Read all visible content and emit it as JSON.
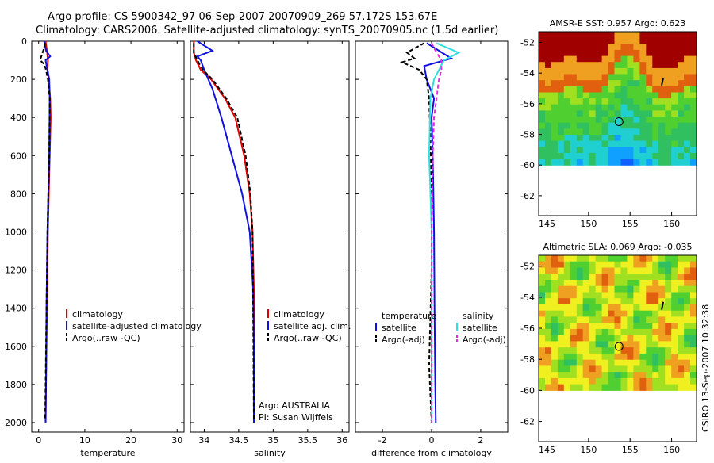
{
  "title": {
    "line1": "Argo profile: CS 5900342_97 06-Sep-2007 20070909_269 57.172S 153.67E",
    "line2": "Climatology: CARS2006. Satellite-adjusted climatology: synTS_20070905.nc (1.5d earlier)"
  },
  "side_label": "CSIRO 13-Sep-2007 10:32:38",
  "colors": {
    "red": "#e00000",
    "blue": "#1010e0",
    "black": "#000000",
    "cyan": "#30e0e0",
    "magenta": "#e030e0"
  },
  "chart_data": [
    {
      "id": "temp",
      "type": "line",
      "xlabel": "temperature",
      "ylabel": "",
      "xlim": [
        -1.5,
        31.5
      ],
      "ylim": [
        2050,
        0
      ],
      "xticks": [
        0,
        10,
        20,
        30
      ],
      "yticks": [
        0,
        200,
        400,
        600,
        800,
        1000,
        1200,
        1400,
        1600,
        1800,
        2000
      ],
      "series": [
        {
          "name": "climatology",
          "color": "red",
          "dash": "",
          "x": [
            1.5,
            1.8,
            2.0,
            1.9,
            2.2,
            2.5,
            2.6,
            2.4,
            2.2,
            2.0,
            1.8,
            1.6,
            1.5
          ],
          "y": [
            0,
            50,
            100,
            150,
            200,
            300,
            400,
            600,
            800,
            1000,
            1400,
            1800,
            2000
          ]
        },
        {
          "name": "satellite-adjusted climatology",
          "color": "blue",
          "dash": "",
          "x": [
            1.2,
            1.6,
            2.5,
            1.5,
            1.9,
            2.3,
            2.4,
            2.3,
            2.1,
            1.9,
            1.7,
            1.6,
            1.5
          ],
          "y": [
            0,
            50,
            80,
            100,
            150,
            200,
            300,
            600,
            800,
            1000,
            1400,
            1800,
            2000
          ]
        },
        {
          "name": "Argo(..raw -QC)",
          "color": "black",
          "dash": "5,3",
          "x": [
            1.4,
            1.0,
            0.3,
            1.2,
            1.6,
            2.0,
            2.4,
            2.3,
            2.1,
            1.9,
            1.7,
            1.5,
            1.4
          ],
          "y": [
            10,
            50,
            100,
            120,
            150,
            200,
            300,
            600,
            800,
            1000,
            1400,
            1800,
            1990
          ]
        }
      ],
      "legend": [
        "climatology",
        "satellite-adjusted climatology",
        "Argo(..raw -QC)"
      ]
    },
    {
      "id": "sal",
      "type": "line",
      "xlabel": "salinity",
      "ylabel": "",
      "xlim": [
        33.8,
        36.1
      ],
      "ylim": [
        2050,
        0
      ],
      "xticks": [
        34,
        34.5,
        35,
        35.5,
        36
      ],
      "yticks": [
        0,
        200,
        400,
        600,
        800,
        1000,
        1200,
        1400,
        1600,
        1800,
        2000
      ],
      "series": [
        {
          "name": "climatology",
          "color": "red",
          "dash": "",
          "x": [
            33.85,
            33.85,
            33.88,
            33.95,
            34.1,
            34.3,
            34.45,
            34.58,
            34.66,
            34.7,
            34.72,
            34.73,
            34.73
          ],
          "y": [
            0,
            60,
            100,
            150,
            200,
            300,
            400,
            600,
            800,
            1000,
            1300,
            1600,
            2000
          ]
        },
        {
          "name": "satellite adj. clim.",
          "color": "blue",
          "dash": "",
          "x": [
            33.9,
            34.12,
            33.9,
            33.95,
            34.0,
            34.12,
            34.25,
            34.4,
            34.55,
            34.66,
            34.71,
            34.72,
            34.72
          ],
          "y": [
            0,
            50,
            80,
            100,
            150,
            250,
            400,
            600,
            800,
            1000,
            1300,
            1600,
            2000
          ]
        },
        {
          "name": "Argo(..raw -QC)",
          "color": "black",
          "dash": "5,3",
          "x": [
            33.85,
            33.85,
            33.9,
            33.98,
            34.12,
            34.32,
            34.48,
            34.6,
            34.67,
            34.7,
            34.71,
            34.72
          ],
          "y": [
            10,
            60,
            100,
            150,
            200,
            300,
            400,
            600,
            800,
            1000,
            1400,
            1990
          ]
        }
      ],
      "legend": [
        "climatology",
        "satellite adj. clim.",
        "Argo(..raw -QC)"
      ],
      "note": [
        "Argo AUSTRALIA",
        "PI: Susan Wijffels"
      ]
    },
    {
      "id": "diff",
      "type": "line",
      "xlabel": "difference from climatology",
      "ylabel": "",
      "xlim": [
        -3.1,
        3.1
      ],
      "ylim": [
        2050,
        0
      ],
      "xticks": [
        -2,
        0,
        2
      ],
      "yticks": [
        0,
        200,
        400,
        600,
        800,
        1000,
        1200,
        1400,
        1600,
        1800,
        2000
      ],
      "series": [
        {
          "name": "temperature satellite",
          "color": "blue",
          "dash": "",
          "x": [
            -0.2,
            0.3,
            0.8,
            -0.3,
            -0.2,
            0.1,
            0.0,
            0.05,
            0.1,
            0.12,
            0.15,
            0.17
          ],
          "y": [
            10,
            50,
            90,
            130,
            200,
            300,
            400,
            600,
            1000,
            1400,
            1800,
            2000
          ]
        },
        {
          "name": "temperature Argo(-adj)",
          "color": "black",
          "dash": "5,3",
          "x": [
            -0.3,
            -1.0,
            -0.7,
            -1.2,
            -0.5,
            -0.2,
            -0.1,
            -0.05,
            0.0,
            0.0,
            -0.1,
            0.0
          ],
          "y": [
            10,
            60,
            90,
            110,
            150,
            200,
            300,
            500,
            800,
            1200,
            1700,
            2000
          ]
        },
        {
          "name": "salinity satellite",
          "color": "cyan",
          "dash": "",
          "x": [
            0.2,
            1.1,
            0.5,
            0.3,
            0.1,
            -0.05,
            -0.1,
            -0.05,
            0.0,
            0.0,
            0.0
          ],
          "y": [
            10,
            60,
            100,
            150,
            200,
            300,
            600,
            800,
            1000,
            1500,
            2000
          ]
        },
        {
          "name": "salinity Argo(-adj)",
          "color": "magenta",
          "dash": "5,3",
          "x": [
            0.0,
            0.2,
            0.4,
            0.4,
            0.3,
            0.2,
            0.1,
            0.05,
            0.0,
            0.0
          ],
          "y": [
            10,
            60,
            100,
            150,
            200,
            300,
            400,
            600,
            1000,
            2000
          ]
        }
      ],
      "legend_headers": [
        "temperature",
        "salinity"
      ],
      "legend": [
        "satellite",
        "Argo(-adj)",
        "satellite",
        "Argo(-adj)"
      ]
    }
  ],
  "maps": [
    {
      "id": "sst",
      "title": "AMSR-E SST: 0.957 Argo: 0.623",
      "xticks": [
        145,
        150,
        155,
        160
      ],
      "yticks": [
        -52,
        -54,
        -56,
        -58,
        -60,
        -62
      ],
      "xlim": [
        144,
        163
      ],
      "ylim": [
        -63.3,
        -51.3
      ],
      "marker": [
        153.67,
        -57.17
      ]
    },
    {
      "id": "sla",
      "title": "Altimetric SLA: 0.069 Argo: -0.035",
      "xticks": [
        145,
        150,
        155,
        160
      ],
      "yticks": [
        -52,
        -54,
        -56,
        -58,
        -60,
        -62
      ],
      "xlim": [
        144,
        163
      ],
      "ylim": [
        -63.3,
        -51.3
      ],
      "marker": [
        153.67,
        -57.17
      ]
    }
  ]
}
